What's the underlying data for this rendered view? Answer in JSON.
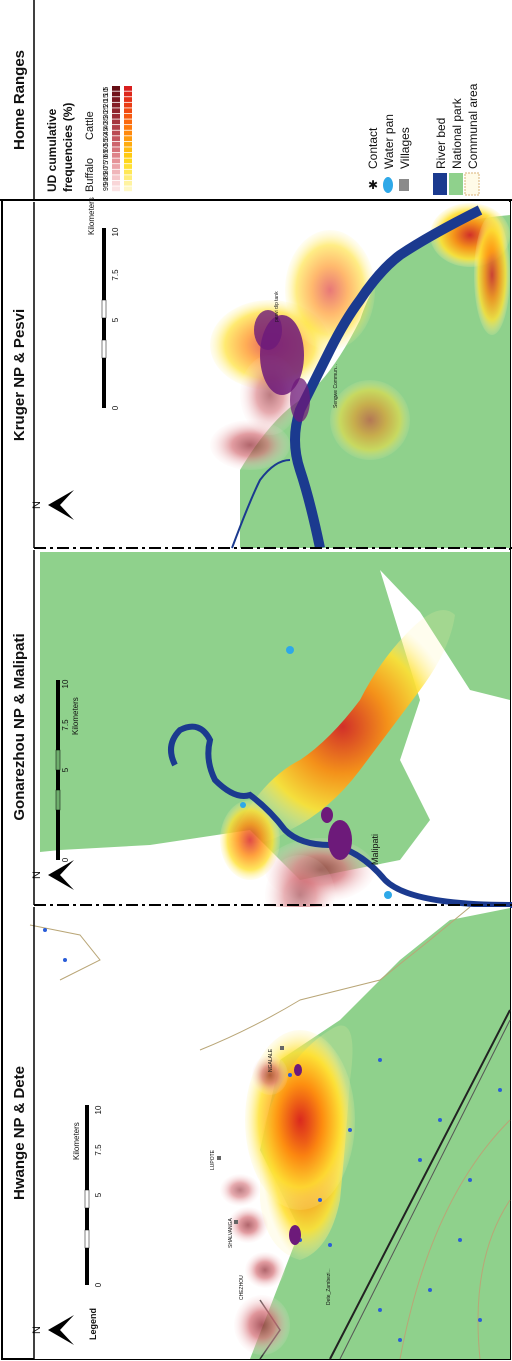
{
  "panels": {
    "home_ranges": "Home Ranges",
    "kruger": "Kruger NP & Pesvi",
    "gonarezhou": "Gonarezhou NP & Malipati",
    "hwange": "Hwange NP & Dete"
  },
  "legend": {
    "title_line1": "UD cumulative",
    "title_line2": "frequencies (%)",
    "buffalo_label": "Buffalo",
    "cattle_label": "Cattle",
    "percentiles": [
      "95",
      "90",
      "85",
      "80",
      "75",
      "70",
      "65",
      "60",
      "55",
      "50",
      "45",
      "40",
      "35",
      "30",
      "25",
      "20",
      "15",
      "10",
      "5"
    ],
    "buffalo_colors": [
      "#fbe3e4",
      "#f9d6d8",
      "#f5c7ca",
      "#f0b6ba",
      "#eba4a9",
      "#e59398",
      "#de8389",
      "#d6737a",
      "#ce646c",
      "#c4565f",
      "#ba4a53",
      "#b03f48",
      "#a5353e",
      "#9a2c35",
      "#8f242d",
      "#841d26",
      "#7a1720",
      "#70121a",
      "#660e15"
    ],
    "cattle_colors": [
      "#fff8c4",
      "#fff3a0",
      "#ffee7a",
      "#ffe856",
      "#ffe134",
      "#ffd81c",
      "#ffcb12",
      "#ffbc10",
      "#ffac0f",
      "#ff9b0e",
      "#ff8a0d",
      "#ff7a0d",
      "#fb6a0e",
      "#f65a10",
      "#f04b12",
      "#ea3d15",
      "#e43118",
      "#de271b",
      "#d81e1e"
    ],
    "items": [
      {
        "label": "Contact",
        "icon": "star-icon",
        "color": "#c2188f"
      },
      {
        "label": "Water pan",
        "icon": "ellipse-icon",
        "color": "#2ea8e8"
      },
      {
        "label": "Villages",
        "icon": "square-icon",
        "color": "#8a8a8a"
      },
      {
        "label": "River bed",
        "icon": "river-swatch",
        "color": "#1b3a8f"
      },
      {
        "label": "National park",
        "icon": "park-swatch",
        "color": "#8fd18c"
      },
      {
        "label": "Communal area",
        "icon": "communal-swatch",
        "color": "#fffbe8"
      }
    ]
  },
  "scalebar": {
    "unit": "Kilometers",
    "ticks": [
      "0",
      "5",
      "7.5",
      "10"
    ]
  },
  "north_label": "N",
  "legend_label": "Legend",
  "map_labels": {
    "pesvi_dip": "pesvi dip tank",
    "sengwe": "Sengwe Commun...",
    "malipati": "Malipati",
    "lupote": "LUPOTE",
    "shalvanga": "SHALVANGA",
    "chezhou": "CHEZHOU",
    "ngalale": "NGALALE",
    "dete": "Dete_Zambezi..."
  }
}
